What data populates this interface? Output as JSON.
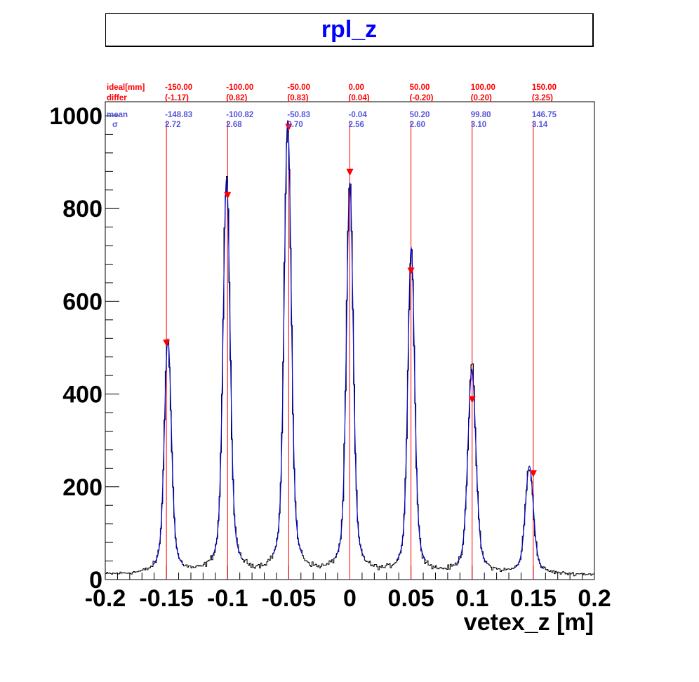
{
  "chart_data": {
    "type": "line",
    "title": "rpl_z",
    "xlabel": "vetex_z [m]",
    "ylabel": "",
    "xlim": [
      -0.2,
      0.2
    ],
    "ylim": [
      0,
      1000
    ],
    "x_ticks": [
      "-0.2",
      "-0.15",
      "-0.1",
      "-0.05",
      "0",
      "0.05",
      "0.1",
      "0.15",
      "0.2"
    ],
    "y_ticks": [
      "0",
      "200",
      "400",
      "600",
      "800",
      "1000"
    ],
    "background_level": 10,
    "peaks": [
      {
        "x": -0.1488,
        "height": 505,
        "sigma": 0.0027
      },
      {
        "x": -0.1008,
        "height": 850,
        "sigma": 0.0027
      },
      {
        "x": -0.0508,
        "height": 975,
        "sigma": 0.0027
      },
      {
        "x": -0.0,
        "height": 840,
        "sigma": 0.0026
      },
      {
        "x": 0.0502,
        "height": 700,
        "sigma": 0.0026
      },
      {
        "x": 0.0998,
        "height": 440,
        "sigma": 0.0031
      },
      {
        "x": 0.1468,
        "height": 232,
        "sigma": 0.0031
      }
    ],
    "markers": [
      {
        "x": -0.15,
        "y": 510
      },
      {
        "x": -0.1,
        "y": 828
      },
      {
        "x": -0.05,
        "y": 975
      },
      {
        "x": 0.0,
        "y": 878
      },
      {
        "x": 0.05,
        "y": 665
      },
      {
        "x": 0.1,
        "y": 388
      },
      {
        "x": 0.15,
        "y": 228
      }
    ],
    "vlines_x": [
      -0.15,
      -0.1,
      -0.05,
      0.0,
      0.05,
      0.1,
      0.15
    ],
    "annotations": {
      "ideal_label": "ideal[mm]",
      "differ_label": "differ",
      "mean_label": "mean",
      "sigma_label": "σ",
      "ideal": [
        "-150.00",
        "-100.00",
        "-50.00",
        "0.00",
        "50.00",
        "100.00",
        "150.00"
      ],
      "differ": [
        "(-1.17)",
        "(0.82)",
        "(0.83)",
        "(0.04)",
        "(-0.20)",
        "(0.20)",
        "(3.25)"
      ],
      "mean": [
        "-148.83",
        "-100.82",
        "-50.83",
        "-0.04",
        "50.20",
        "99.80",
        "146.75"
      ],
      "sigma": [
        "2.72",
        "2.68",
        "2.70",
        "2.56",
        "2.60",
        "3.10",
        "3.14"
      ]
    },
    "grid": false,
    "colors": {
      "histogram": "#000000",
      "fit": "#0000cc",
      "lines": "#ff0000",
      "markers": "#ff0000",
      "title": "#0000ff",
      "ideal_text": "#ff0000",
      "mean_text": "#5555dd"
    }
  }
}
